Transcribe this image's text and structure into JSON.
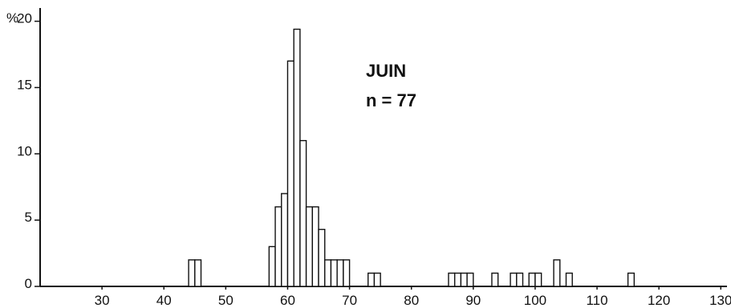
{
  "chart_data": {
    "type": "bar",
    "title": "JUIN",
    "subtitle": "n = 77",
    "ylabel": "%",
    "xlabel": "",
    "x_ticks": [
      30,
      40,
      50,
      60,
      70,
      80,
      90,
      100,
      110,
      120,
      130
    ],
    "y_ticks": [
      {
        "value": 0,
        "label": "0"
      },
      {
        "value": 5,
        "label": "5"
      },
      {
        "value": 10,
        "label": "10"
      },
      {
        "value": 15,
        "label": "15"
      },
      {
        "value": 20,
        "label": "20"
      }
    ],
    "xlim": [
      20,
      131
    ],
    "ylim": [
      0,
      21
    ],
    "bin_width": 1,
    "grid": false,
    "bars": [
      {
        "x": 44,
        "y": 2
      },
      {
        "x": 45,
        "y": 2
      },
      {
        "x": 57,
        "y": 3
      },
      {
        "x": 58,
        "y": 6
      },
      {
        "x": 59,
        "y": 7
      },
      {
        "x": 60,
        "y": 17
      },
      {
        "x": 61,
        "y": 19.4
      },
      {
        "x": 62,
        "y": 11
      },
      {
        "x": 63,
        "y": 6
      },
      {
        "x": 64,
        "y": 6
      },
      {
        "x": 65,
        "y": 4.3
      },
      {
        "x": 66,
        "y": 2
      },
      {
        "x": 67,
        "y": 2
      },
      {
        "x": 68,
        "y": 2
      },
      {
        "x": 69,
        "y": 2
      },
      {
        "x": 73,
        "y": 1
      },
      {
        "x": 74,
        "y": 1
      },
      {
        "x": 86,
        "y": 1
      },
      {
        "x": 87,
        "y": 1
      },
      {
        "x": 88,
        "y": 1
      },
      {
        "x": 89,
        "y": 1
      },
      {
        "x": 93,
        "y": 1
      },
      {
        "x": 96,
        "y": 1
      },
      {
        "x": 97,
        "y": 1
      },
      {
        "x": 99,
        "y": 1
      },
      {
        "x": 100,
        "y": 1
      },
      {
        "x": 103,
        "y": 2
      },
      {
        "x": 105,
        "y": 1
      },
      {
        "x": 115,
        "y": 1
      }
    ]
  }
}
